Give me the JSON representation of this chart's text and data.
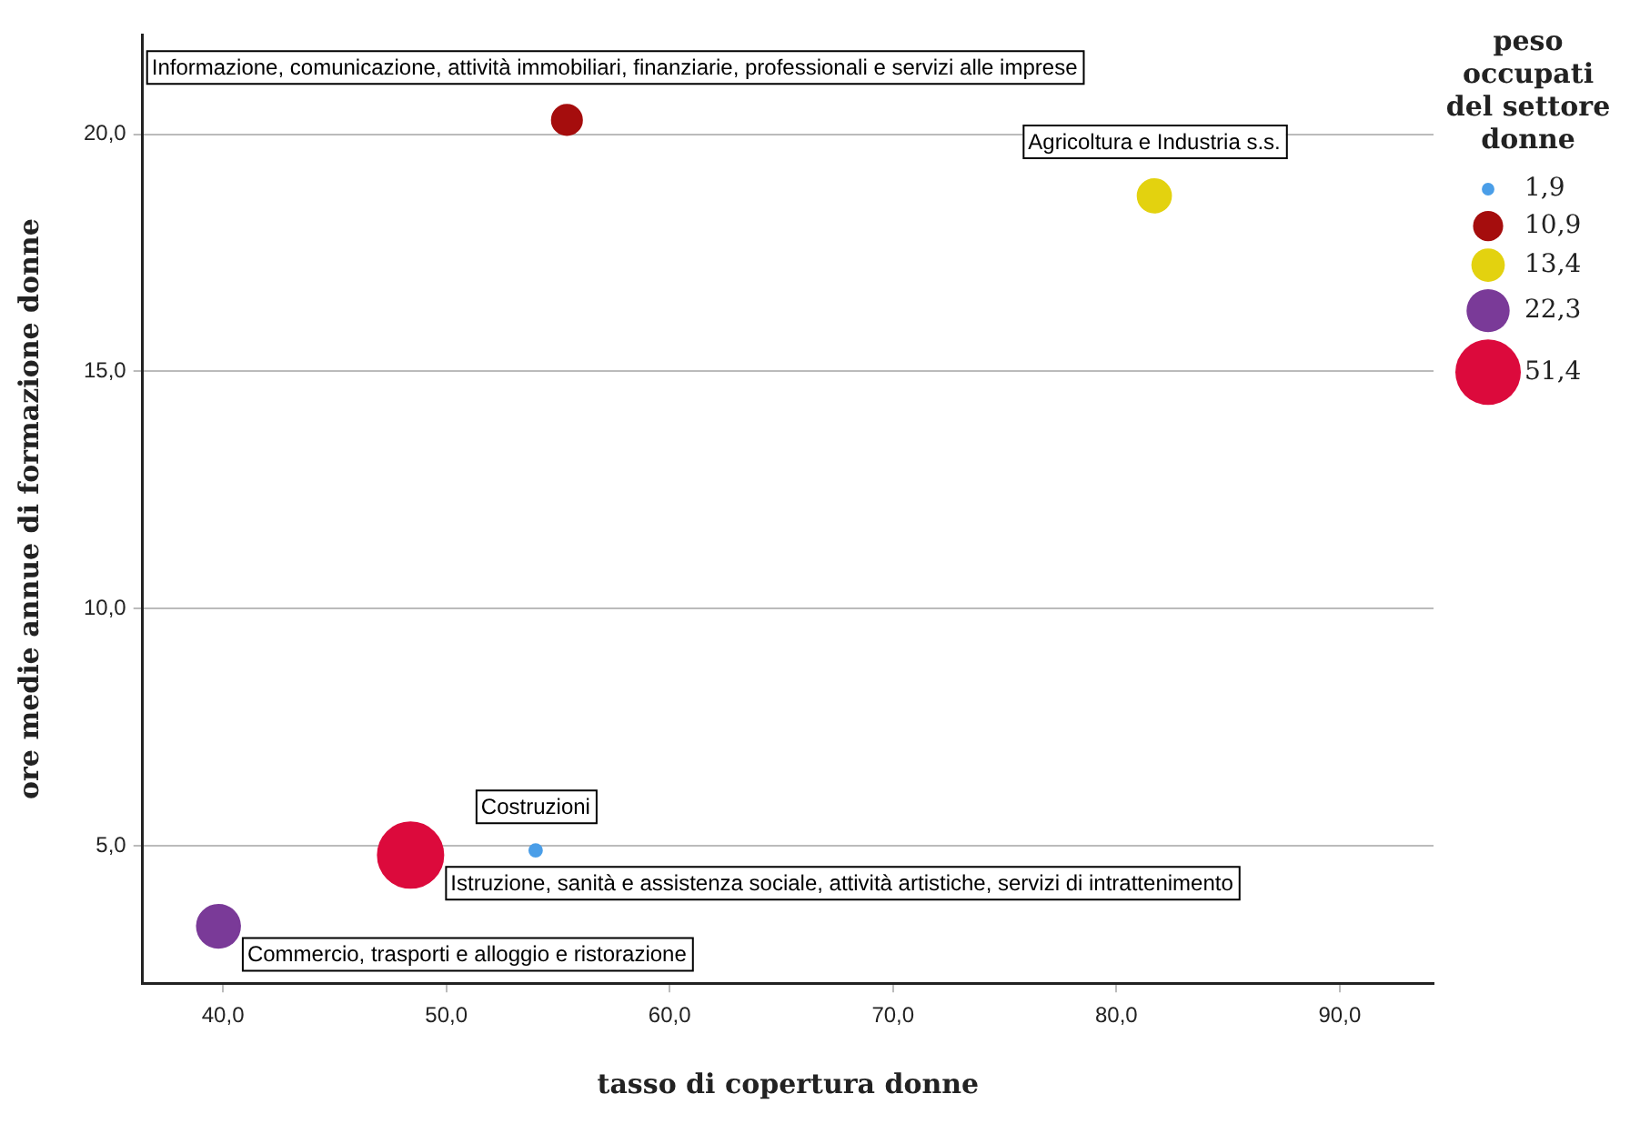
{
  "chart_data": {
    "type": "bubble",
    "xlabel": "tasso di copertura donne",
    "ylabel": "ore medie annue di formazione donne",
    "legend_title": "peso occupati del settore donne",
    "xlim": [
      36.4,
      94.2
    ],
    "xticks": [
      {
        "value": 40,
        "label": "40,0"
      },
      {
        "value": 50,
        "label": "50,0"
      },
      {
        "value": 60,
        "label": "60,0"
      },
      {
        "value": 70,
        "label": "70,0"
      },
      {
        "value": 80,
        "label": "80,0"
      },
      {
        "value": 90,
        "label": "90,0"
      }
    ],
    "ylim": [
      2.1,
      22.1
    ],
    "yticks": [
      {
        "value": 5,
        "label": "5,0"
      },
      {
        "value": 10,
        "label": "10,0"
      },
      {
        "value": 15,
        "label": "15,0"
      },
      {
        "value": 20,
        "label": "20,0"
      }
    ],
    "grid": "y",
    "size_legend": [
      {
        "value": 1.9,
        "label": "1,9"
      },
      {
        "value": 10.9,
        "label": "10,9"
      },
      {
        "value": 13.4,
        "label": "13,4"
      },
      {
        "value": 22.3,
        "label": "22,3"
      },
      {
        "value": 51.4,
        "label": "51,4"
      }
    ],
    "series": [
      {
        "color": "#4a9ee8",
        "x": [
          54.0
        ],
        "values": [
          4.9
        ],
        "sizes": [
          1.9
        ]
      },
      {
        "color": "#a50d0d",
        "x": [
          55.4
        ],
        "values": [
          20.3
        ],
        "sizes": [
          10.9
        ]
      },
      {
        "color": "#e3d20f",
        "x": [
          81.7
        ],
        "values": [
          18.7
        ],
        "sizes": [
          13.4
        ]
      },
      {
        "color": "#7a3a98",
        "x": [
          39.8
        ],
        "values": [
          3.3
        ],
        "sizes": [
          22.3
        ]
      },
      {
        "color": "#dc0a3c",
        "x": [
          48.4
        ],
        "values": [
          4.8
        ],
        "sizes": [
          51.4
        ]
      }
    ],
    "annotations": [
      {
        "text": "Costruzioni",
        "x": 54.0,
        "y": 4.9
      },
      {
        "text": "Informazione, comunicazione, attività immobiliari, finanziarie, professionali e servizi alle imprese",
        "x": 55.4,
        "y": 20.3
      },
      {
        "text": "Agricoltura e Industria s.s.",
        "x": 81.7,
        "y": 18.7
      },
      {
        "text": "Istruzione, sanità e assistenza sociale, attività artistiche, servizi di intrattenimento",
        "x": 48.4,
        "y": 4.8
      },
      {
        "text": "Commercio, trasporti e alloggio e ristorazione",
        "x": 39.8,
        "y": 3.3
      }
    ]
  }
}
